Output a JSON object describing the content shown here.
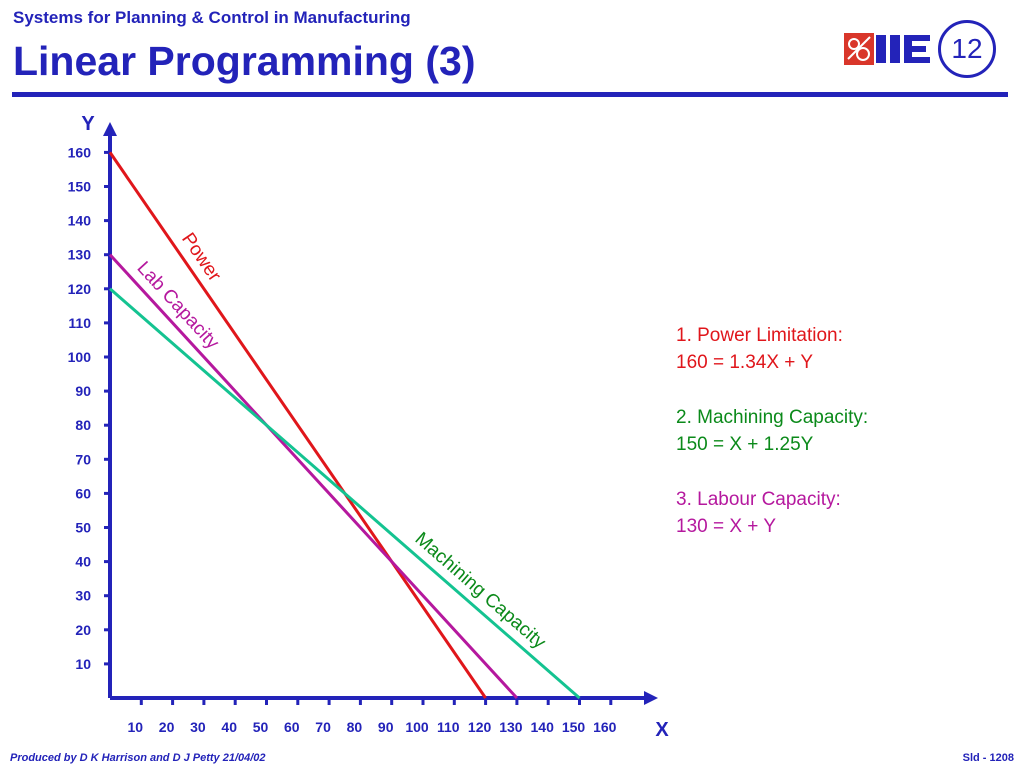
{
  "header": {
    "subtitle": "Systems for Planning & Control in Manufacturing",
    "title": "Linear Programming (3)",
    "slide_number": "12",
    "logo_text": "IIE"
  },
  "equations": [
    {
      "heading": "1.  Power Limitation:",
      "formula": "160 = 1.34X + Y",
      "color": "#e0161b"
    },
    {
      "heading": "2.  Machining Capacity:",
      "formula": "150 = X + 1.25Y",
      "color": "#0b8a1a"
    },
    {
      "heading": "3.  Labour Capacity:",
      "formula": "130 = X + Y",
      "color": "#b5189e"
    }
  ],
  "footer": {
    "left": "Produced by D K Harrison and D J Petty 21/04/02",
    "right": "Sld - 1208"
  },
  "colors": {
    "axis": "#2323b9",
    "power": "#e0161b",
    "machining": "#14c391",
    "labour": "#b5189e",
    "machining_label": "#0b8a1a"
  },
  "chart_data": {
    "type": "line",
    "xlabel": "X",
    "ylabel": "Y",
    "xlim": [
      0,
      160
    ],
    "ylim": [
      0,
      160
    ],
    "x_ticks": [
      10,
      20,
      30,
      40,
      50,
      60,
      70,
      80,
      90,
      100,
      110,
      120,
      130,
      140,
      150,
      160
    ],
    "y_ticks": [
      10,
      20,
      30,
      40,
      50,
      60,
      70,
      80,
      90,
      100,
      110,
      120,
      130,
      140,
      150,
      160
    ],
    "grid": false,
    "series": [
      {
        "name": "Power",
        "x": [
          0,
          120
        ],
        "y": [
          160,
          0
        ]
      },
      {
        "name": "Lab Capacity",
        "x": [
          0,
          130
        ],
        "y": [
          130,
          0
        ]
      },
      {
        "name": "Machining Capacity",
        "x": [
          0,
          150
        ],
        "y": [
          120,
          0
        ]
      }
    ]
  }
}
